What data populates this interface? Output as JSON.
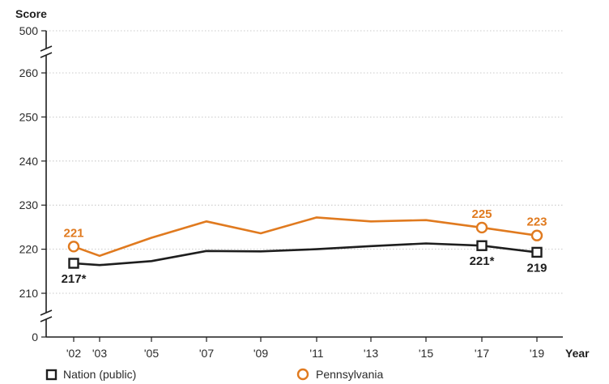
{
  "chart_data": {
    "type": "line",
    "y_axis_title": "Score",
    "x_axis_title": "Year",
    "y_ticks": [
      "500",
      "260",
      "250",
      "240",
      "230",
      "220",
      "210",
      "0"
    ],
    "y_tick_values": [
      500,
      260,
      250,
      240,
      230,
      220,
      210,
      0
    ],
    "y_axis_break": true,
    "x": [
      "'02",
      "'03",
      "'05",
      "'07",
      "'09",
      "'11",
      "'13",
      "'15",
      "'17",
      "'19"
    ],
    "series": [
      {
        "name": "Nation (public)",
        "color": "#1e1e1e",
        "marker": "square",
        "values": [
          216.8,
          216.4,
          217.3,
          219.6,
          219.5,
          220.0,
          220.7,
          221.3,
          220.8,
          219.3
        ]
      },
      {
        "name": "Pennsylvania",
        "color": "#e07a1f",
        "marker": "circle",
        "values": [
          220.6,
          218.5,
          222.6,
          226.3,
          223.6,
          227.2,
          226.3,
          226.6,
          224.9,
          223.1
        ]
      }
    ],
    "data_labels": [
      {
        "series": 0,
        "index": 0,
        "text": "217*",
        "position": "below"
      },
      {
        "series": 0,
        "index": 8,
        "text": "221*",
        "position": "below"
      },
      {
        "series": 0,
        "index": 9,
        "text": "219",
        "position": "below"
      },
      {
        "series": 1,
        "index": 0,
        "text": "221",
        "position": "above"
      },
      {
        "series": 1,
        "index": 8,
        "text": "225",
        "position": "above"
      },
      {
        "series": 1,
        "index": 9,
        "text": "223",
        "position": "above"
      }
    ],
    "markers_at": [
      0,
      8,
      9
    ],
    "grid": "horizontal-dotted",
    "legend": "bottom"
  }
}
